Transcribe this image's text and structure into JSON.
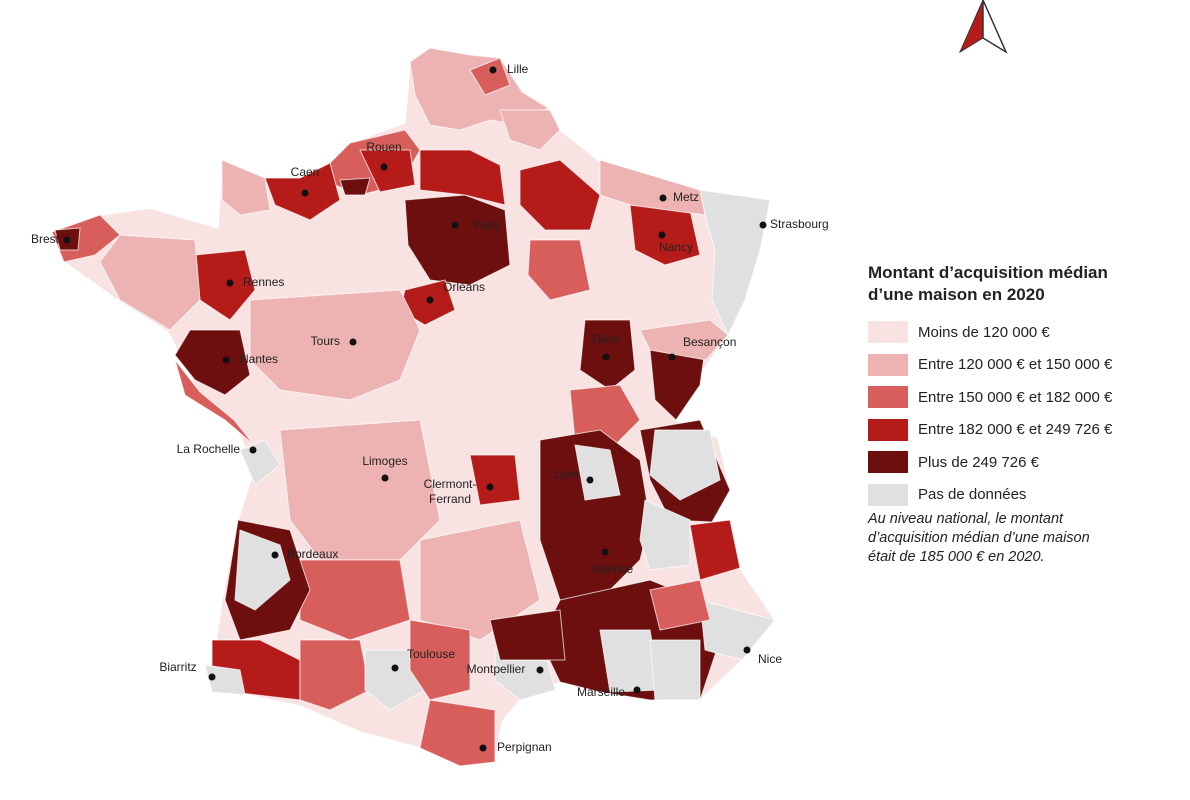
{
  "legend": {
    "title_lines": [
      "Montant d’acquisition médian",
      "d’une maison en 2020"
    ],
    "items": [
      {
        "label": "Moins de 120 000 €",
        "color": "#f8e2e2"
      },
      {
        "label": "Entre 120 000 € et 150 000 €",
        "color": "#edb3b3"
      },
      {
        "label": "Entre 150 000 € et 182 000 €",
        "color": "#d85e5c"
      },
      {
        "label": "Entre 182 000 € et 249 726 €",
        "color": "#b51c19"
      },
      {
        "label": "Plus de 249 726 €",
        "color": "#6d0f0f"
      },
      {
        "label": "Pas de données",
        "color": "#e0e0e0"
      }
    ]
  },
  "note": "Au niveau national, le montant d’acquisition médian d’une maison était de 185 000 € en 2020.",
  "cities": [
    {
      "lines": [
        "Lille"
      ]
    },
    {
      "lines": [
        "Caen"
      ]
    },
    {
      "lines": [
        "Rouen"
      ]
    },
    {
      "lines": [
        "Brest"
      ]
    },
    {
      "lines": [
        "Metz"
      ]
    },
    {
      "lines": [
        "Strasbourg"
      ]
    },
    {
      "lines": [
        "Paris"
      ]
    },
    {
      "lines": [
        "Nancy"
      ]
    },
    {
      "lines": [
        "Rennes"
      ]
    },
    {
      "lines": [
        "Orléans"
      ]
    },
    {
      "lines": [
        "Tours"
      ]
    },
    {
      "lines": [
        "Dijon"
      ]
    },
    {
      "lines": [
        "Besançon"
      ]
    },
    {
      "lines": [
        "Nantes"
      ]
    },
    {
      "lines": [
        "La Rochelle"
      ]
    },
    {
      "lines": [
        "Limoges"
      ]
    },
    {
      "lines": [
        "Clermont-",
        "Ferrand"
      ]
    },
    {
      "lines": [
        "Lyon"
      ]
    },
    {
      "lines": [
        "Bordeaux"
      ]
    },
    {
      "lines": [
        "Valence"
      ]
    },
    {
      "lines": [
        "Biarritz"
      ]
    },
    {
      "lines": [
        "Toulouse"
      ]
    },
    {
      "lines": [
        "Montpellier"
      ]
    },
    {
      "lines": [
        "Nice"
      ]
    },
    {
      "lines": [
        "Marseille"
      ]
    },
    {
      "lines": [
        "Perpignan"
      ]
    }
  ]
}
